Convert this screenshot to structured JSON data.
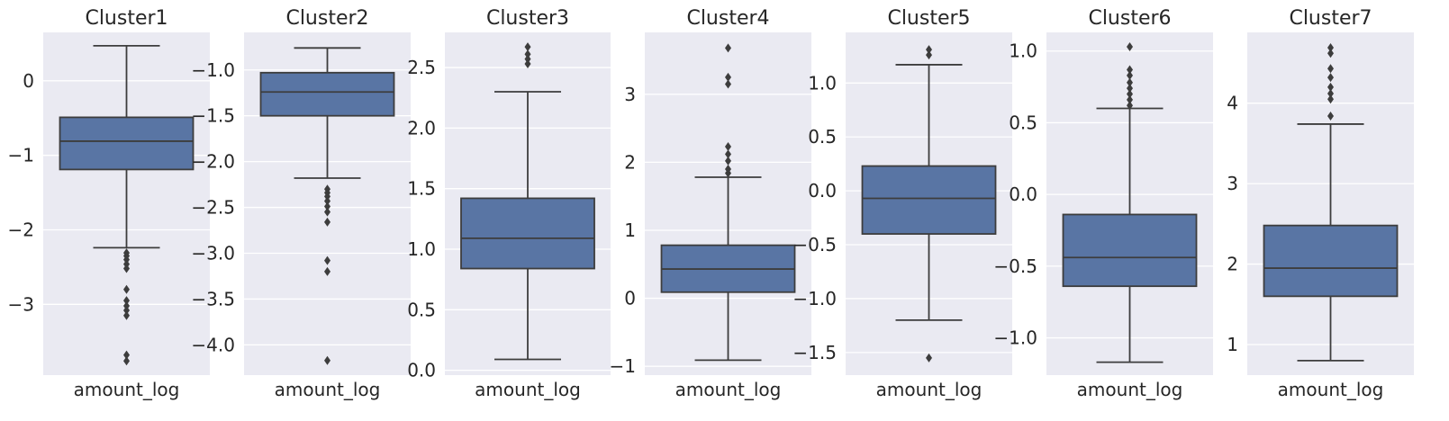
{
  "colors": {
    "background": "#eaeaf2",
    "grid": "#ffffff",
    "box_fill": "#5975a4",
    "line": "#3d3d3d",
    "text": "#262626"
  },
  "chart_data": [
    {
      "type": "box",
      "title": "Cluster1",
      "xlabel": "amount_log",
      "categories": [
        "amount_log"
      ],
      "ylim": [
        -3.95,
        0.65
      ],
      "yticks": [
        0,
        -1,
        -2,
        -3
      ],
      "ytick_labels": [
        "0",
        "−1",
        "−2",
        "−3"
      ],
      "box": {
        "whisker_low": -2.24,
        "q1": -1.19,
        "median": -0.81,
        "q3": -0.49,
        "whisker_high": 0.47
      },
      "outliers": [
        -2.31,
        -2.35,
        -2.4,
        -2.46,
        -2.52,
        -2.8,
        -2.95,
        -3.02,
        -3.08,
        -3.15,
        -3.68,
        -3.76
      ]
    },
    {
      "type": "box",
      "title": "Cluster2",
      "xlabel": "amount_log",
      "categories": [
        "amount_log"
      ],
      "ylim": [
        -4.33,
        -0.59
      ],
      "yticks": [
        -1.0,
        -1.5,
        -2.0,
        -2.5,
        -3.0,
        -3.5,
        -4.0
      ],
      "ytick_labels": [
        "−1.0",
        "−1.5",
        "−2.0",
        "−2.5",
        "−3.0",
        "−3.5",
        "−4.0"
      ],
      "box": {
        "whisker_low": -2.18,
        "q1": -1.5,
        "median": -1.24,
        "q3": -1.03,
        "whisker_high": -0.76
      },
      "outliers": [
        -2.3,
        -2.34,
        -2.38,
        -2.43,
        -2.49,
        -2.55,
        -2.66,
        -3.08,
        -3.2,
        -4.17
      ]
    },
    {
      "type": "box",
      "title": "Cluster3",
      "xlabel": "amount_log",
      "categories": [
        "amount_log"
      ],
      "ylim": [
        -0.04,
        2.79
      ],
      "yticks": [
        0.0,
        0.5,
        1.0,
        1.5,
        2.0,
        2.5
      ],
      "ytick_labels": [
        "0.0",
        "0.5",
        "1.0",
        "1.5",
        "2.0",
        "2.5"
      ],
      "box": {
        "whisker_low": 0.09,
        "q1": 0.84,
        "median": 1.09,
        "q3": 1.42,
        "whisker_high": 2.3
      },
      "outliers": [
        2.53,
        2.57,
        2.61,
        2.67
      ]
    },
    {
      "type": "box",
      "title": "Cluster4",
      "xlabel": "amount_log",
      "categories": [
        "amount_log"
      ],
      "ylim": [
        -1.13,
        3.91
      ],
      "yticks": [
        3,
        2,
        1,
        0,
        -1
      ],
      "ytick_labels": [
        "3",
        "2",
        "1",
        "0",
        "−1"
      ],
      "box": {
        "whisker_low": -0.91,
        "q1": 0.09,
        "median": 0.43,
        "q3": 0.78,
        "whisker_high": 1.78
      },
      "outliers": [
        1.84,
        1.9,
        2.02,
        2.12,
        2.23,
        3.15,
        3.25,
        3.68
      ]
    },
    {
      "type": "box",
      "title": "Cluster5",
      "xlabel": "amount_log",
      "categories": [
        "amount_log"
      ],
      "ylim": [
        -1.71,
        1.47
      ],
      "yticks": [
        1.0,
        0.5,
        0.0,
        -0.5,
        -1.0,
        -1.5
      ],
      "ytick_labels": [
        "1.0",
        "0.5",
        "0.0",
        "−0.5",
        "−1.0",
        "−1.5"
      ],
      "box": {
        "whisker_low": -1.2,
        "q1": -0.4,
        "median": -0.07,
        "q3": 0.23,
        "whisker_high": 1.17
      },
      "outliers": [
        -1.55,
        1.26,
        1.31
      ]
    },
    {
      "type": "box",
      "title": "Cluster6",
      "xlabel": "amount_log",
      "categories": [
        "amount_log"
      ],
      "ylim": [
        -1.26,
        1.13
      ],
      "yticks": [
        1.0,
        0.5,
        0.0,
        -0.5,
        -1.0
      ],
      "ytick_labels": [
        "1.0",
        "0.5",
        "0.0",
        "−0.5",
        "−1.0"
      ],
      "box": {
        "whisker_low": -1.17,
        "q1": -0.64,
        "median": -0.44,
        "q3": -0.14,
        "whisker_high": 0.6
      },
      "outliers": [
        0.62,
        0.66,
        0.7,
        0.74,
        0.78,
        0.83,
        0.87,
        1.03
      ]
    },
    {
      "type": "box",
      "title": "Cluster7",
      "xlabel": "amount_log",
      "categories": [
        "amount_log"
      ],
      "ylim": [
        0.62,
        4.88
      ],
      "yticks": [
        4,
        3,
        2,
        1
      ],
      "ytick_labels": [
        "4",
        "3",
        "2",
        "1"
      ],
      "box": {
        "whisker_low": 0.8,
        "q1": 1.6,
        "median": 1.95,
        "q3": 2.48,
        "whisker_high": 3.74
      },
      "outliers": [
        3.84,
        4.05,
        4.12,
        4.2,
        4.32,
        4.43,
        4.62,
        4.69
      ]
    }
  ]
}
